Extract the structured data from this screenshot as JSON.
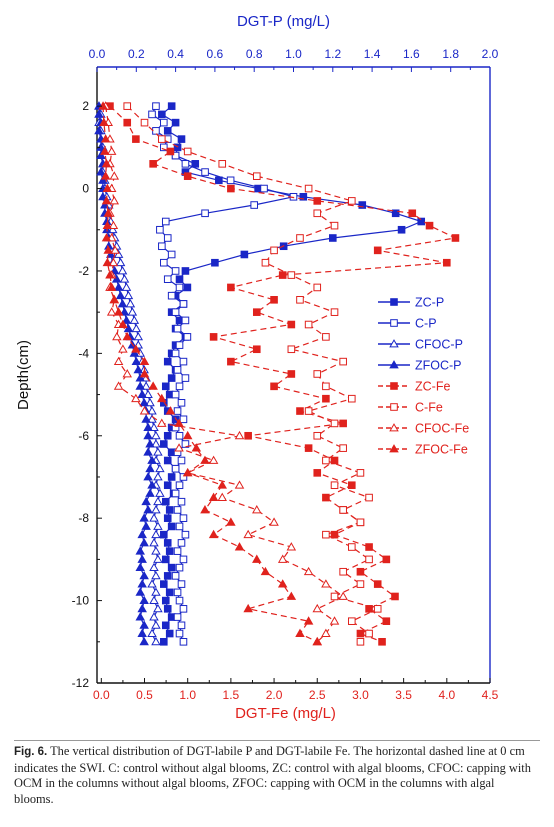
{
  "chart_data": {
    "type": "line",
    "xlabel_top": "DGT-P (mg/L)",
    "xlabel_bottom": "DGT-Fe (mg/L)",
    "ylabel": "Depth(cm)",
    "xlim_top": [
      0,
      2.0
    ],
    "xlim_bottom": [
      -0.05,
      4.5
    ],
    "ylim": [
      -12,
      2.95
    ],
    "x_ticks_top": [
      "0.0",
      "0.2",
      "0.4",
      "0.6",
      "0.8",
      "1.0",
      "1.2",
      "1.4",
      "1.6",
      "1.8",
      "2.0"
    ],
    "x_ticks_bottom": [
      "0.0",
      "0.5",
      "1.0",
      "1.5",
      "2.0",
      "2.5",
      "3.0",
      "3.5",
      "4.0",
      "4.5"
    ],
    "y_ticks": [
      "2",
      "0",
      "-2",
      "-4",
      "-6",
      "-8",
      "-10",
      "-12"
    ],
    "legend_position": "right-middle",
    "grid": false,
    "colors": {
      "p": "#1a27c7",
      "fe": "#e0221d"
    },
    "series": [
      {
        "name": "ZC-P",
        "axis": "top",
        "marker": "square-filled",
        "line": "solid",
        "depth": [
          2.0,
          1.8,
          1.6,
          1.4,
          1.2,
          1.0,
          0.8,
          0.6,
          0.4,
          0.2,
          0.0,
          -0.2,
          -0.4,
          -0.6,
          -0.8,
          -1.0,
          -1.2,
          -1.4,
          -1.6,
          -1.8,
          -2.0,
          -2.2,
          -2.4,
          -2.6,
          -2.8,
          -3.0,
          -3.2,
          -3.4,
          -3.6,
          -3.8,
          -4.0,
          -4.2,
          -4.4,
          -4.6,
          -4.8,
          -5.0,
          -5.2,
          -5.4,
          -5.6,
          -5.8,
          -6.0,
          -6.2,
          -6.4,
          -6.6,
          -6.8,
          -7.0,
          -7.2,
          -7.4,
          -7.6,
          -7.8,
          -8.0,
          -8.2,
          -8.4,
          -8.6,
          -8.8,
          -9.0,
          -9.2,
          -9.4,
          -9.6,
          -9.8,
          -10.0,
          -10.2,
          -10.4,
          -10.6,
          -10.8,
          -11.0
        ],
        "values": [
          0.38,
          0.33,
          0.4,
          0.36,
          0.43,
          0.41,
          0.4,
          0.5,
          0.45,
          0.62,
          0.82,
          1.05,
          1.35,
          1.52,
          1.65,
          1.55,
          1.2,
          0.95,
          0.75,
          0.6,
          0.45,
          0.42,
          0.46,
          0.4,
          0.44,
          0.38,
          0.42,
          0.4,
          0.45,
          0.4,
          0.38,
          0.36,
          0.4,
          0.38,
          0.35,
          0.37,
          0.34,
          0.36,
          0.4,
          0.38,
          0.36,
          0.34,
          0.38,
          0.36,
          0.4,
          0.38,
          0.36,
          0.39,
          0.35,
          0.37,
          0.36,
          0.38,
          0.34,
          0.36,
          0.37,
          0.35,
          0.38,
          0.36,
          0.34,
          0.37,
          0.35,
          0.36,
          0.38,
          0.35,
          0.37,
          0.34
        ]
      },
      {
        "name": "C-P",
        "axis": "top",
        "marker": "square-open",
        "line": "solid",
        "depth": [
          2.0,
          1.8,
          1.6,
          1.4,
          1.2,
          1.0,
          0.8,
          0.6,
          0.4,
          0.2,
          0.0,
          -0.2,
          -0.4,
          -0.6,
          -0.8,
          -1.0,
          -1.2,
          -1.4,
          -1.6,
          -1.8,
          -2.0,
          -2.2,
          -2.4,
          -2.6,
          -2.8,
          -3.0,
          -3.2,
          -3.4,
          -3.6,
          -3.8,
          -4.0,
          -4.2,
          -4.4,
          -4.6,
          -4.8,
          -5.0,
          -5.2,
          -5.4,
          -5.6,
          -5.8,
          -6.0,
          -6.2,
          -6.4,
          -6.6,
          -6.8,
          -7.0,
          -7.2,
          -7.4,
          -7.6,
          -7.8,
          -8.0,
          -8.2,
          -8.4,
          -8.6,
          -8.8,
          -9.0,
          -9.2,
          -9.4,
          -9.6,
          -9.8,
          -10.0,
          -10.2,
          -10.4,
          -10.6,
          -10.8,
          -11.0
        ],
        "values": [
          0.3,
          0.28,
          0.34,
          0.3,
          0.36,
          0.34,
          0.4,
          0.45,
          0.55,
          0.68,
          0.85,
          1.0,
          0.8,
          0.55,
          0.35,
          0.32,
          0.36,
          0.33,
          0.38,
          0.34,
          0.4,
          0.36,
          0.42,
          0.38,
          0.44,
          0.4,
          0.45,
          0.41,
          0.46,
          0.42,
          0.4,
          0.44,
          0.41,
          0.45,
          0.42,
          0.4,
          0.43,
          0.41,
          0.44,
          0.4,
          0.42,
          0.45,
          0.41,
          0.43,
          0.4,
          0.44,
          0.42,
          0.4,
          0.43,
          0.41,
          0.44,
          0.42,
          0.45,
          0.43,
          0.41,
          0.44,
          0.42,
          0.4,
          0.43,
          0.41,
          0.42,
          0.44,
          0.41,
          0.43,
          0.42,
          0.44
        ]
      },
      {
        "name": "CFOC-P",
        "axis": "top",
        "marker": "triangle-open",
        "line": "solid",
        "depth": [
          2.0,
          1.8,
          1.6,
          1.4,
          1.2,
          1.0,
          0.8,
          0.6,
          0.4,
          0.2,
          0.0,
          -0.2,
          -0.4,
          -0.6,
          -0.8,
          -1.0,
          -1.2,
          -1.4,
          -1.6,
          -1.8,
          -2.0,
          -2.2,
          -2.4,
          -2.6,
          -2.8,
          -3.0,
          -3.2,
          -3.4,
          -3.6,
          -3.8,
          -4.0,
          -4.2,
          -4.4,
          -4.6,
          -4.8,
          -5.0,
          -5.2,
          -5.4,
          -5.6,
          -5.8,
          -6.0,
          -6.2,
          -6.4,
          -6.6,
          -6.8,
          -7.0,
          -7.2,
          -7.4,
          -7.6,
          -7.8,
          -8.0,
          -8.2,
          -8.4,
          -8.6,
          -8.8,
          -9.0,
          -9.2,
          -9.4,
          -9.6,
          -9.8,
          -10.0,
          -10.2,
          -10.4,
          -10.6,
          -10.8,
          -11.0
        ],
        "values": [
          0.01,
          0.02,
          0.01,
          0.02,
          0.02,
          0.03,
          0.02,
          0.03,
          0.03,
          0.04,
          0.04,
          0.05,
          0.06,
          0.06,
          0.07,
          0.08,
          0.09,
          0.1,
          0.11,
          0.12,
          0.13,
          0.14,
          0.15,
          0.16,
          0.17,
          0.18,
          0.19,
          0.2,
          0.21,
          0.21,
          0.22,
          0.23,
          0.24,
          0.25,
          0.25,
          0.26,
          0.27,
          0.28,
          0.28,
          0.29,
          0.3,
          0.3,
          0.31,
          0.3,
          0.32,
          0.31,
          0.3,
          0.32,
          0.31,
          0.3,
          0.29,
          0.31,
          0.3,
          0.29,
          0.3,
          0.31,
          0.29,
          0.3,
          0.28,
          0.3,
          0.29,
          0.31,
          0.29,
          0.3,
          0.28,
          0.3
        ]
      },
      {
        "name": "ZFOC-P",
        "axis": "top",
        "marker": "triangle-filled",
        "line": "solid",
        "depth": [
          2.0,
          1.8,
          1.6,
          1.4,
          1.2,
          1.0,
          0.8,
          0.6,
          0.4,
          0.2,
          0.0,
          -0.2,
          -0.4,
          -0.6,
          -0.8,
          -1.0,
          -1.2,
          -1.4,
          -1.6,
          -1.8,
          -2.0,
          -2.2,
          -2.4,
          -2.6,
          -2.8,
          -3.0,
          -3.2,
          -3.4,
          -3.6,
          -3.8,
          -4.0,
          -4.2,
          -4.4,
          -4.6,
          -4.8,
          -5.0,
          -5.2,
          -5.4,
          -5.6,
          -5.8,
          -6.0,
          -6.2,
          -6.4,
          -6.6,
          -6.8,
          -7.0,
          -7.2,
          -7.4,
          -7.6,
          -7.8,
          -8.0,
          -8.2,
          -8.4,
          -8.6,
          -8.8,
          -9.0,
          -9.2,
          -9.4,
          -9.6,
          -9.8,
          -10.0,
          -10.2,
          -10.4,
          -10.6,
          -10.8,
          -11.0
        ],
        "values": [
          0.01,
          0.01,
          0.02,
          0.01,
          0.02,
          0.02,
          0.02,
          0.03,
          0.02,
          0.03,
          0.03,
          0.03,
          0.04,
          0.04,
          0.05,
          0.05,
          0.06,
          0.06,
          0.07,
          0.08,
          0.09,
          0.1,
          0.11,
          0.12,
          0.13,
          0.14,
          0.15,
          0.16,
          0.17,
          0.18,
          0.19,
          0.2,
          0.21,
          0.22,
          0.22,
          0.23,
          0.24,
          0.25,
          0.25,
          0.26,
          0.26,
          0.27,
          0.26,
          0.28,
          0.27,
          0.26,
          0.28,
          0.27,
          0.25,
          0.26,
          0.24,
          0.25,
          0.23,
          0.24,
          0.22,
          0.23,
          0.22,
          0.24,
          0.23,
          0.22,
          0.24,
          0.23,
          0.22,
          0.24,
          0.23,
          0.24
        ]
      },
      {
        "name": "ZC-Fe",
        "axis": "bottom",
        "marker": "square-filled",
        "line": "dashed",
        "depth": [
          2.0,
          1.6,
          1.2,
          0.9,
          0.6,
          0.3,
          0.0,
          -0.3,
          -0.6,
          -0.9,
          -1.2,
          -1.5,
          -1.8,
          -2.1,
          -2.4,
          -2.7,
          -3.0,
          -3.3,
          -3.6,
          -3.9,
          -4.2,
          -4.5,
          -4.8,
          -5.1,
          -5.4,
          -5.7,
          -6.0,
          -6.3,
          -6.6,
          -6.9,
          -7.2,
          -7.5,
          -7.8,
          -8.1,
          -8.4,
          -8.7,
          -9.0,
          -9.3,
          -9.6,
          -9.9,
          -10.2,
          -10.5,
          -10.8,
          -11.0
        ],
        "values": [
          0.1,
          0.3,
          0.4,
          0.8,
          0.6,
          1.0,
          1.5,
          2.5,
          3.6,
          3.8,
          4.1,
          3.2,
          4.0,
          2.1,
          1.5,
          2.0,
          1.8,
          2.2,
          1.3,
          1.8,
          1.5,
          2.2,
          2.0,
          2.6,
          2.3,
          2.8,
          1.7,
          2.4,
          2.7,
          2.5,
          2.9,
          2.6,
          2.8,
          3.0,
          2.7,
          3.1,
          3.3,
          3.0,
          3.2,
          3.4,
          3.1,
          3.3,
          3.0,
          3.25
        ]
      },
      {
        "name": "C-Fe",
        "axis": "bottom",
        "marker": "square-open",
        "line": "dashed",
        "depth": [
          2.0,
          1.6,
          1.2,
          0.9,
          0.6,
          0.3,
          0.0,
          -0.3,
          -0.6,
          -0.9,
          -1.2,
          -1.5,
          -1.8,
          -2.1,
          -2.4,
          -2.7,
          -3.0,
          -3.3,
          -3.6,
          -3.9,
          -4.2,
          -4.5,
          -4.8,
          -5.1,
          -5.4,
          -5.7,
          -6.0,
          -6.3,
          -6.6,
          -6.9,
          -7.2,
          -7.5,
          -7.8,
          -8.1,
          -8.4,
          -8.7,
          -9.0,
          -9.3,
          -9.6,
          -9.9,
          -10.2,
          -10.5,
          -10.8,
          -11.0
        ],
        "values": [
          0.3,
          0.5,
          0.7,
          1.0,
          1.4,
          1.8,
          2.4,
          2.9,
          2.5,
          2.7,
          2.3,
          2.0,
          1.9,
          2.2,
          2.5,
          2.3,
          2.7,
          2.4,
          2.6,
          2.2,
          2.8,
          2.5,
          2.6,
          2.9,
          2.4,
          2.7,
          2.5,
          2.8,
          2.6,
          3.0,
          2.7,
          3.1,
          2.8,
          3.0,
          2.6,
          2.9,
          3.1,
          2.8,
          3.0,
          2.7,
          3.2,
          2.9,
          3.1,
          3.0
        ]
      },
      {
        "name": "CFOC-Fe",
        "axis": "bottom",
        "marker": "triangle-open",
        "line": "dashed",
        "depth": [
          2.0,
          1.6,
          1.2,
          0.9,
          0.6,
          0.3,
          0.0,
          -0.3,
          -0.6,
          -0.9,
          -1.2,
          -1.5,
          -1.8,
          -2.1,
          -2.4,
          -2.7,
          -3.0,
          -3.3,
          -3.6,
          -3.9,
          -4.2,
          -4.5,
          -4.8,
          -5.1,
          -5.4,
          -5.7,
          -6.0,
          -6.3,
          -6.6,
          -6.9,
          -7.2,
          -7.5,
          -7.8,
          -8.1,
          -8.4,
          -8.7,
          -9.0,
          -9.3,
          -9.6,
          -9.9,
          -10.2,
          -10.5,
          -10.8,
          -11.0
        ],
        "values": [
          0.05,
          0.08,
          0.1,
          0.12,
          0.1,
          0.15,
          0.12,
          0.15,
          0.1,
          0.14,
          0.12,
          0.16,
          0.14,
          0.12,
          0.1,
          0.15,
          0.12,
          0.2,
          0.18,
          0.25,
          0.2,
          0.3,
          0.2,
          0.4,
          0.5,
          0.7,
          1.6,
          0.9,
          1.3,
          1.0,
          1.6,
          1.4,
          1.8,
          2.0,
          1.7,
          2.2,
          2.1,
          2.4,
          2.6,
          2.8,
          2.5,
          2.7,
          2.6,
          2.5
        ]
      },
      {
        "name": "ZFOC-Fe",
        "axis": "bottom",
        "marker": "triangle-filled",
        "line": "dashed",
        "depth": [
          2.0,
          1.6,
          1.2,
          0.9,
          0.6,
          0.3,
          0.0,
          -0.3,
          -0.6,
          -0.9,
          -1.2,
          -1.5,
          -1.8,
          -2.1,
          -2.4,
          -2.7,
          -3.0,
          -3.3,
          -3.6,
          -3.9,
          -4.2,
          -4.5,
          -4.8,
          -5.1,
          -5.4,
          -5.7,
          -6.0,
          -6.3,
          -6.6,
          -6.9,
          -7.2,
          -7.5,
          -7.8,
          -8.1,
          -8.4,
          -8.7,
          -9.0,
          -9.3,
          -9.6,
          -9.9,
          -10.2,
          -10.5,
          -10.8,
          -11.0
        ],
        "values": [
          0.02,
          0.03,
          0.05,
          0.04,
          0.06,
          0.05,
          0.07,
          0.06,
          0.08,
          0.07,
          0.06,
          0.08,
          0.07,
          0.1,
          0.12,
          0.15,
          0.2,
          0.25,
          0.3,
          0.4,
          0.5,
          0.5,
          0.6,
          0.7,
          0.8,
          0.9,
          1.0,
          1.1,
          1.2,
          1.0,
          1.4,
          1.3,
          1.2,
          1.5,
          1.3,
          1.6,
          1.8,
          1.9,
          2.1,
          2.2,
          1.7,
          2.4,
          2.3,
          2.5
        ]
      }
    ]
  },
  "legend": [
    {
      "label": "ZC-P",
      "kind": "p",
      "marker": "square-filled"
    },
    {
      "label": "C-P",
      "kind": "p",
      "marker": "square-open"
    },
    {
      "label": "CFOC-P",
      "kind": "p",
      "marker": "triangle-open"
    },
    {
      "label": "ZFOC-P",
      "kind": "p",
      "marker": "triangle-filled"
    },
    {
      "label": "ZC-Fe",
      "kind": "fe",
      "marker": "square-filled"
    },
    {
      "label": "C-Fe",
      "kind": "fe",
      "marker": "square-open"
    },
    {
      "label": "CFOC-Fe",
      "kind": "fe",
      "marker": "triangle-open"
    },
    {
      "label": "ZFOC-Fe",
      "kind": "fe",
      "marker": "triangle-filled"
    }
  ],
  "caption": {
    "label": "Fig. 6.",
    "text": "The vertical distribution of DGT-labile P and DGT-labile Fe. The horizontal dashed line at 0 cm indicates the SWI. C: control without algal blooms, ZC: control with algal blooms, CFOC: capping with OCM in the columns without algal blooms, ZFOC: capping with OCM in the columns with algal blooms."
  }
}
